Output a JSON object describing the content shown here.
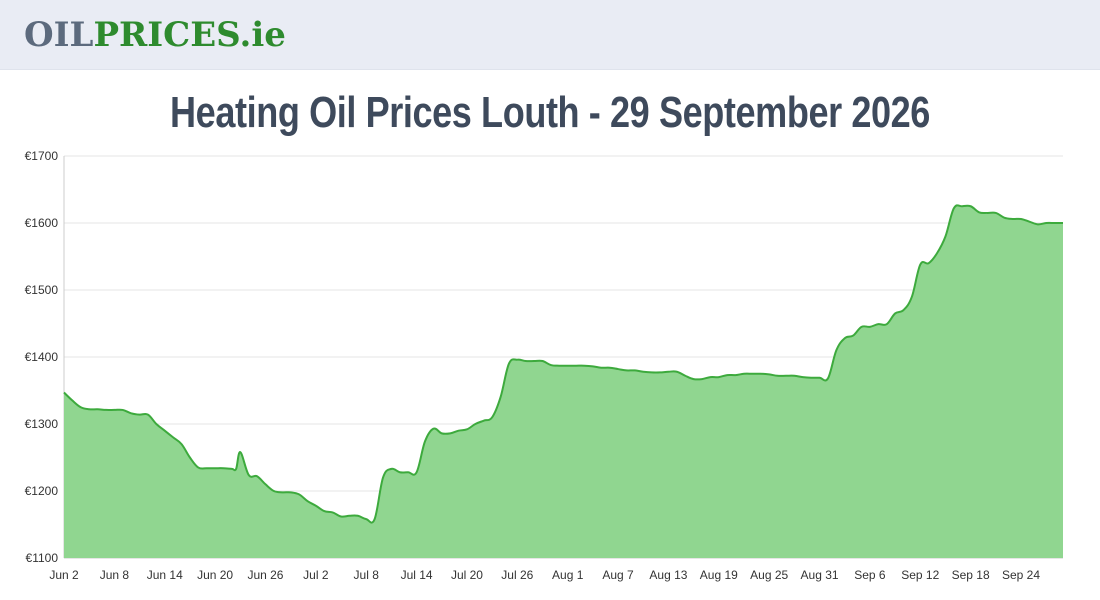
{
  "header": {
    "logo_oil": "OIL",
    "logo_prices": "PRICES",
    "logo_ie": ".ie"
  },
  "page": {
    "title": "Heating Oil Prices Louth - 29 September 2026"
  },
  "colors": {
    "line": "#3daa3d",
    "fill": "#90d690",
    "grid": "#e6e6e6",
    "header_bg": "#e9ecf4",
    "title": "#3e4a5c"
  },
  "chart_data": {
    "type": "area",
    "title": "",
    "xlabel": "",
    "ylabel": "",
    "ylim": [
      1100,
      1700
    ],
    "yticks": [
      1100,
      1200,
      1300,
      1400,
      1500,
      1600,
      1700
    ],
    "ytick_labels": [
      "€1100",
      "€1200",
      "€1300",
      "€1400",
      "€1500",
      "€1600",
      "€1700"
    ],
    "x_day_range": [
      0,
      119
    ],
    "xticks": [
      {
        "label": "Jun 2",
        "day": 0
      },
      {
        "label": "Jun 8",
        "day": 6
      },
      {
        "label": "Jun 14",
        "day": 12
      },
      {
        "label": "Jun 20",
        "day": 18
      },
      {
        "label": "Jun 26",
        "day": 24
      },
      {
        "label": "Jul 2",
        "day": 30
      },
      {
        "label": "Jul 8",
        "day": 36
      },
      {
        "label": "Jul 14",
        "day": 42
      },
      {
        "label": "Jul 20",
        "day": 48
      },
      {
        "label": "Jul 26",
        "day": 54
      },
      {
        "label": "Aug 1",
        "day": 60
      },
      {
        "label": "Aug 7",
        "day": 66
      },
      {
        "label": "Aug 13",
        "day": 72
      },
      {
        "label": "Aug 19",
        "day": 78
      },
      {
        "label": "Aug 25",
        "day": 84
      },
      {
        "label": "Aug 31",
        "day": 90
      },
      {
        "label": "Sep 6",
        "day": 96
      },
      {
        "label": "Sep 12",
        "day": 102
      },
      {
        "label": "Sep 18",
        "day": 108
      },
      {
        "label": "Sep 24",
        "day": 114
      }
    ],
    "grid": true,
    "legend": "none",
    "series": [
      {
        "x": [
          0,
          1,
          2,
          3,
          4,
          5,
          6,
          7,
          8,
          9,
          10,
          11,
          12,
          13,
          14,
          15,
          16,
          17,
          18,
          19,
          20,
          20.5,
          21,
          22,
          23,
          24,
          25,
          26,
          27,
          28,
          29,
          30,
          31,
          32,
          33,
          34,
          35,
          36,
          37,
          38,
          39,
          40,
          41,
          42,
          43,
          44,
          45,
          46,
          47,
          48,
          49,
          50,
          51,
          52,
          53,
          54,
          55,
          56,
          57,
          58,
          59,
          60,
          61,
          62,
          63,
          64,
          65,
          66,
          67,
          68,
          69,
          70,
          71,
          72,
          73,
          74,
          75,
          76,
          77,
          78,
          79,
          80,
          81,
          82,
          83,
          84,
          85,
          86,
          87,
          88,
          89,
          90,
          91,
          92,
          93,
          94,
          95,
          96,
          97,
          98,
          99,
          100,
          101,
          102,
          103,
          104,
          105,
          106,
          107,
          108,
          109,
          110,
          111,
          112,
          113,
          114,
          115,
          116,
          117,
          118,
          119
        ],
        "y": [
          1347,
          1335,
          1325,
          1322,
          1322,
          1321,
          1321,
          1321,
          1316,
          1314,
          1314,
          1300,
          1290,
          1280,
          1270,
          1250,
          1235,
          1234,
          1234,
          1234,
          1233,
          1233,
          1258,
          1224,
          1222,
          1210,
          1200,
          1198,
          1198,
          1195,
          1185,
          1178,
          1170,
          1168,
          1162,
          1163,
          1163,
          1158,
          1158,
          1220,
          1233,
          1228,
          1228,
          1228,
          1274,
          1293,
          1286,
          1286,
          1290,
          1292,
          1300,
          1305,
          1310,
          1340,
          1390,
          1396,
          1394,
          1394,
          1394,
          1388,
          1387,
          1387,
          1387,
          1387,
          1386,
          1384,
          1384,
          1382,
          1380,
          1380,
          1378,
          1377,
          1377,
          1378,
          1378,
          1372,
          1367,
          1367,
          1370,
          1370,
          1373,
          1373,
          1375,
          1375,
          1375,
          1374,
          1372,
          1372,
          1372,
          1370,
          1369,
          1369,
          1368,
          1410,
          1428,
          1432,
          1445,
          1445,
          1449,
          1449,
          1465,
          1470,
          1490,
          1538,
          1540,
          1555,
          1580,
          1622,
          1625,
          1625,
          1616,
          1615,
          1615,
          1608,
          1606,
          1606,
          1602,
          1598,
          1600,
          1600,
          1600
        ]
      }
    ]
  }
}
